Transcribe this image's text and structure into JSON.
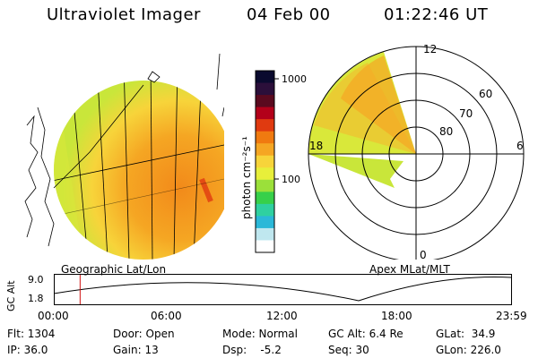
{
  "header": {
    "instrument": "Ultraviolet Imager",
    "date": "04 Feb 00",
    "time": "01:22:46 UT"
  },
  "colorbar": {
    "unit_label": "photon cm⁻²s⁻¹",
    "ticks": [
      "1000",
      "100"
    ],
    "colors": [
      "#0a0a2e",
      "#2b0f3a",
      "#5a0a1f",
      "#b3001a",
      "#e03a10",
      "#f07a10",
      "#f5a623",
      "#f7d43a",
      "#e8ef3a",
      "#9be03a",
      "#37d04a",
      "#2fd0a0",
      "#2bb8d8",
      "#bfe7ef",
      "#ffffff"
    ]
  },
  "left_panel": {
    "caption": "Geographic Lat/Lon"
  },
  "right_panel": {
    "caption": "Apex MLat/MLT",
    "mlt_labels": {
      "top": "12",
      "left": "18",
      "right": "6",
      "bottom": "0"
    },
    "lat_labels": [
      "60",
      "70",
      "80"
    ]
  },
  "timeline": {
    "ylabel": "GC Alt",
    "y_ticks": [
      "9.0",
      "1.8"
    ],
    "x_ticks": [
      "00:00",
      "06:00",
      "12:00",
      "18:00",
      "23:59"
    ],
    "marker_time_hours": 1.38
  },
  "footer": {
    "flt": "Flt: 1304",
    "ip": "IP: 36.0",
    "door": "Door: Open",
    "gain": "Gain: 13",
    "mode": "Mode: Normal",
    "dsp": "Dsp:    -5.2",
    "gc_alt": "GC Alt: 6.4 Re",
    "seq": "Seq: 30",
    "glat": "GLat:  34.9",
    "glon": "GLon: 226.0"
  }
}
